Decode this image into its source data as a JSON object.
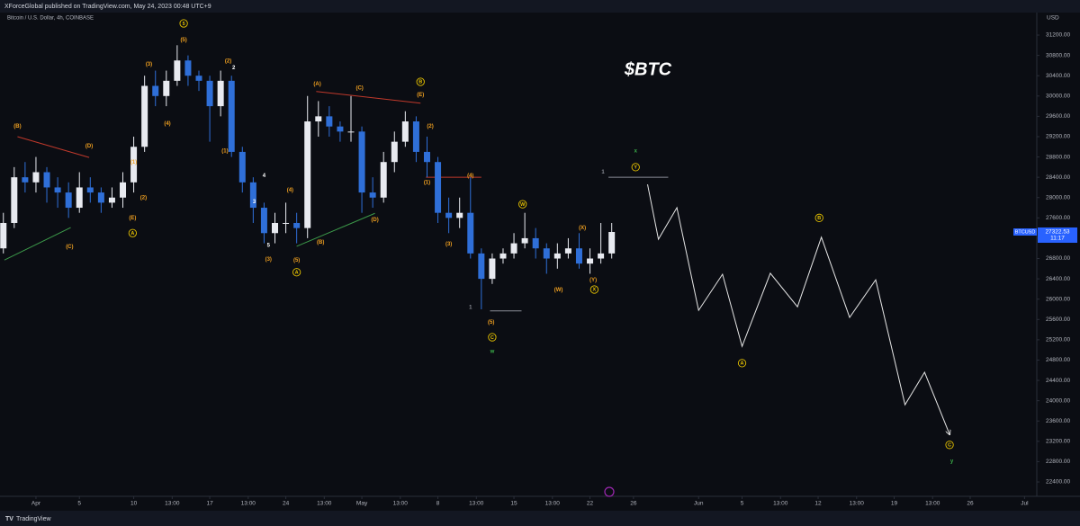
{
  "header": "XForceGlobal published on TradingView.com, May 24, 2023 00:48 UTC+9",
  "footer": "TradingView",
  "chart_data": {
    "type": "candlestick",
    "title": "$BTC",
    "symbol": "Bitcoin / U.S. Dollar, 4h, COINBASE",
    "currency": "BTCUSD",
    "y_unit": "USD",
    "countdown": "11:17",
    "up_color": "#e8eaf0",
    "down_color": "#2f6fd8",
    "grid": false,
    "x": [
      -3,
      -2,
      -1,
      0,
      1,
      2,
      3,
      4,
      5,
      6,
      7,
      8,
      9,
      10,
      11,
      12,
      13,
      14,
      15,
      16,
      17,
      18,
      19,
      20,
      21,
      22,
      23,
      24,
      25,
      26,
      27,
      28,
      29,
      30,
      31,
      32,
      33,
      34,
      35,
      36,
      37,
      38,
      39,
      40,
      41,
      42,
      43,
      44,
      45,
      46,
      47,
      48,
      49,
      50,
      51,
      52,
      53
    ],
    "open": [
      27000,
      27500,
      28400,
      28300,
      28500,
      28200,
      28100,
      27800,
      28200,
      28100,
      27900,
      28000,
      28300,
      29000,
      30200,
      30000,
      30300,
      30700,
      30400,
      30300,
      29800,
      30300,
      28900,
      28300,
      27800,
      27300,
      27500,
      27500,
      27400,
      29500,
      29600,
      29400,
      29300,
      29300,
      28100,
      28000,
      28700,
      29100,
      29500,
      28900,
      28700,
      27700,
      27600,
      27700,
      26900,
      26400,
      26800,
      26900,
      27100,
      27200,
      27000,
      26800,
      26900,
      27000,
      26700,
      26800,
      26900
    ],
    "high": [
      27700,
      28600,
      28700,
      28800,
      28600,
      28400,
      28300,
      28500,
      28400,
      28200,
      28200,
      28500,
      29200,
      30400,
      30500,
      30500,
      31000,
      30800,
      30500,
      30400,
      30500,
      30400,
      29000,
      28400,
      27900,
      27700,
      27900,
      27700,
      30000,
      29900,
      29800,
      29500,
      30000,
      29400,
      28400,
      28900,
      29300,
      29700,
      29600,
      29200,
      28800,
      28000,
      28000,
      28400,
      27000,
      26900,
      27000,
      27300,
      27700,
      27400,
      27100,
      27100,
      27200,
      27300,
      27000,
      27500,
      27500
    ],
    "low": [
      26900,
      27400,
      28100,
      28100,
      27900,
      27800,
      27600,
      27700,
      27900,
      27700,
      27800,
      27800,
      28100,
      28900,
      29800,
      29800,
      30200,
      30200,
      30100,
      29100,
      29600,
      28800,
      28100,
      27500,
      27100,
      27100,
      27300,
      27100,
      27200,
      29200,
      29200,
      29100,
      29100,
      27700,
      27800,
      27900,
      28500,
      29000,
      28700,
      28400,
      27500,
      27300,
      27400,
      26800,
      25800,
      26300,
      26700,
      26800,
      27000,
      26800,
      26500,
      26600,
      26800,
      26600,
      26500,
      26700,
      26800
    ],
    "close": [
      27500,
      28400,
      28300,
      28500,
      28200,
      28100,
      27800,
      28200,
      28100,
      27900,
      28000,
      28300,
      29000,
      30200,
      30000,
      30300,
      30700,
      30400,
      30300,
      29800,
      30300,
      28900,
      28300,
      27800,
      27300,
      27500,
      27500,
      27400,
      29500,
      29600,
      29400,
      29300,
      29300,
      28100,
      28000,
      28700,
      29100,
      29500,
      28900,
      28700,
      27700,
      27600,
      27700,
      26900,
      26400,
      26800,
      26900,
      27100,
      27200,
      27000,
      26800,
      26900,
      27000,
      26700,
      26800,
      26900,
      27322.53
    ],
    "projection": {
      "color": "#e6e6e6",
      "x": [
        56.3,
        57.3,
        59.0,
        61.0,
        63.2,
        65.0,
        67.6,
        70.1,
        72.3,
        74.9,
        77.3,
        80.0,
        81.8,
        84.1
      ],
      "values": [
        28260,
        27180,
        27800,
        25780,
        26490,
        25070,
        26510,
        25850,
        27220,
        25640,
        26380,
        23920,
        24560,
        23340
      ]
    },
    "lines": [
      {
        "color": "#c0392b",
        "x": [
          -1.7,
          4.9
        ],
        "values": [
          29200,
          28790
        ]
      },
      {
        "color": "#c0392b",
        "x": [
          25.8,
          35.4
        ],
        "values": [
          30090,
          29860
        ]
      },
      {
        "color": "#c0392b",
        "x": [
          35.9,
          41.0
        ],
        "values": [
          28400,
          28400
        ]
      },
      {
        "color": "#3c9a4a",
        "x": [
          -2.9,
          3.2
        ],
        "values": [
          26770,
          27410
        ]
      },
      {
        "color": "#3c9a4a",
        "x": [
          24.0,
          31.2
        ],
        "values": [
          27040,
          27690
        ]
      },
      {
        "color": "#8a8d96",
        "x": [
          41.8,
          44.7
        ],
        "values": [
          25770,
          25770
        ]
      },
      {
        "color": "#8a8d96",
        "x": [
          52.7,
          58.2
        ],
        "values": [
          28400,
          28400
        ]
      }
    ],
    "annotations": [
      {
        "text": "(B)",
        "x": -1.7,
        "y": 29410,
        "color": "#f0a020"
      },
      {
        "text": "(D)",
        "x": 4.9,
        "y": 29020,
        "color": "#f0a020"
      },
      {
        "text": "(C)",
        "x": 3.1,
        "y": 27040,
        "color": "#f0a020"
      },
      {
        "text": "(E)",
        "x": 8.9,
        "y": 27600,
        "color": "#f0a020"
      },
      {
        "text": "A",
        "x": 8.9,
        "y": 27300,
        "color": "#e6c200",
        "circled": true
      },
      {
        "text": "(1)",
        "x": 9.0,
        "y": 28700,
        "color": "#f0a020"
      },
      {
        "text": "(2)",
        "x": 9.9,
        "y": 28000,
        "color": "#f0a020"
      },
      {
        "text": "(3)",
        "x": 10.4,
        "y": 30630,
        "color": "#f0a020"
      },
      {
        "text": "(4)",
        "x": 12.1,
        "y": 29460,
        "color": "#f0a020"
      },
      {
        "text": "(5)",
        "x": 13.6,
        "y": 31110,
        "color": "#f0a020"
      },
      {
        "text": "5",
        "x": 13.6,
        "y": 31430,
        "color": "#e6c200",
        "circled": true
      },
      {
        "text": "(1)",
        "x": 17.4,
        "y": 28920,
        "color": "#f0a020"
      },
      {
        "text": "(2)",
        "x": 17.7,
        "y": 30690,
        "color": "#f0a020"
      },
      {
        "text": "2",
        "x": 18.2,
        "y": 30560,
        "color": "#ffffff"
      },
      {
        "text": "3",
        "x": 20.1,
        "y": 27920,
        "color": "#ffffff"
      },
      {
        "text": "4",
        "x": 21.0,
        "y": 28440,
        "color": "#ffffff"
      },
      {
        "text": "5",
        "x": 21.4,
        "y": 27060,
        "color": "#ffffff"
      },
      {
        "text": "(3)",
        "x": 21.4,
        "y": 26790,
        "color": "#f0a020"
      },
      {
        "text": "(4)",
        "x": 23.4,
        "y": 28150,
        "color": "#f0a020"
      },
      {
        "text": "(5)",
        "x": 24.0,
        "y": 26770,
        "color": "#f0a020"
      },
      {
        "text": "A",
        "x": 24.0,
        "y": 26530,
        "color": "#e6c200",
        "circled": true
      },
      {
        "text": "(A)",
        "x": 25.9,
        "y": 30240,
        "color": "#f0a020"
      },
      {
        "text": "(C)",
        "x": 29.8,
        "y": 30160,
        "color": "#f0a020"
      },
      {
        "text": "(B)",
        "x": 26.2,
        "y": 27130,
        "color": "#f0a020"
      },
      {
        "text": "(D)",
        "x": 31.2,
        "y": 27570,
        "color": "#f0a020"
      },
      {
        "text": "B",
        "x": 35.4,
        "y": 30280,
        "color": "#e6c200",
        "circled": true
      },
      {
        "text": "(E)",
        "x": 35.4,
        "y": 30030,
        "color": "#f0a020"
      },
      {
        "text": "(2)",
        "x": 36.3,
        "y": 29410,
        "color": "#f0a020"
      },
      {
        "text": "(1)",
        "x": 36.0,
        "y": 28300,
        "color": "#f0a020"
      },
      {
        "text": "(4)",
        "x": 40.0,
        "y": 28440,
        "color": "#f0a020"
      },
      {
        "text": "(3)",
        "x": 38.0,
        "y": 27090,
        "color": "#f0a020"
      },
      {
        "text": "W",
        "x": 44.8,
        "y": 27870,
        "color": "#e6c200",
        "circled": true
      },
      {
        "text": "(X)",
        "x": 50.3,
        "y": 27410,
        "color": "#f0a020"
      },
      {
        "text": "(W)",
        "x": 48.1,
        "y": 26190,
        "color": "#f0a020"
      },
      {
        "text": "(Y)",
        "x": 51.3,
        "y": 26380,
        "color": "#f0a020"
      },
      {
        "text": "X",
        "x": 51.4,
        "y": 26190,
        "color": "#e6c200",
        "circled": true
      },
      {
        "text": "(5)",
        "x": 41.9,
        "y": 25550,
        "color": "#f0a020"
      },
      {
        "text": "C",
        "x": 42.0,
        "y": 25250,
        "color": "#e6c200",
        "circled": true
      },
      {
        "text": "w",
        "x": 42.0,
        "y": 24970,
        "color": "#3cb04a"
      },
      {
        "text": "1",
        "x": 40.0,
        "y": 25840,
        "color": "#8a8d96"
      },
      {
        "text": "1",
        "x": 52.2,
        "y": 28510,
        "color": "#8a8d96"
      },
      {
        "text": "x",
        "x": 55.2,
        "y": 28920,
        "color": "#3cb04a"
      },
      {
        "text": "Y",
        "x": 55.2,
        "y": 28600,
        "color": "#e6c200",
        "circled": true
      },
      {
        "text": "B",
        "x": 72.1,
        "y": 27600,
        "color": "#e6c200",
        "circled": true
      },
      {
        "text": "A",
        "x": 65.0,
        "y": 24740,
        "color": "#e6c200",
        "circled": true
      },
      {
        "text": "C",
        "x": 84.1,
        "y": 23130,
        "color": "#e6c200",
        "circled": true
      },
      {
        "text": "y",
        "x": 84.3,
        "y": 22810,
        "color": "#3cb04a"
      }
    ],
    "xlim": [
      -3.31,
      92.13
    ],
    "xticks": [
      {
        "value": 0,
        "label": "Apr"
      },
      {
        "value": 4,
        "label": "5"
      },
      {
        "value": 9,
        "label": "10"
      },
      {
        "value": 12.54,
        "label": "13:00"
      },
      {
        "value": 16,
        "label": "17"
      },
      {
        "value": 19.54,
        "label": "13:00"
      },
      {
        "value": 23,
        "label": "24"
      },
      {
        "value": 26.54,
        "label": "13:00"
      },
      {
        "value": 30,
        "label": "May"
      },
      {
        "value": 33.54,
        "label": "13:00"
      },
      {
        "value": 37,
        "label": "8"
      },
      {
        "value": 40.54,
        "label": "13:00"
      },
      {
        "value": 44,
        "label": "15"
      },
      {
        "value": 47.54,
        "label": "13:00"
      },
      {
        "value": 51,
        "label": "22"
      },
      {
        "value": 55,
        "label": "26"
      },
      {
        "value": 61,
        "label": "Jun"
      },
      {
        "value": 65,
        "label": "5"
      },
      {
        "value": 68.54,
        "label": "13:00"
      },
      {
        "value": 72,
        "label": "12"
      },
      {
        "value": 75.54,
        "label": "13:00"
      },
      {
        "value": 79,
        "label": "19"
      },
      {
        "value": 82.54,
        "label": "13:00"
      },
      {
        "value": 86,
        "label": "26"
      },
      {
        "value": 91,
        "label": "Jul"
      }
    ],
    "ylim": [
      22117,
      31643
    ],
    "yticks": [
      {
        "value": 22400,
        "label": "22400.00"
      },
      {
        "value": 22800,
        "label": "22800.00"
      },
      {
        "value": 23200,
        "label": "23200.00"
      },
      {
        "value": 23600,
        "label": "23600.00"
      },
      {
        "value": 24000,
        "label": "24000.00"
      },
      {
        "value": 24400,
        "label": "24400.00"
      },
      {
        "value": 24800,
        "label": "24800.00"
      },
      {
        "value": 25200,
        "label": "25200.00"
      },
      {
        "value": 25600,
        "label": "25600.00"
      },
      {
        "value": 26000,
        "label": "26000.00"
      },
      {
        "value": 26400,
        "label": "26400.00"
      },
      {
        "value": 26800,
        "label": "26800.00"
      },
      {
        "value": 27200,
        "label": "27200.00"
      },
      {
        "value": 27600,
        "label": "27600.00"
      },
      {
        "value": 28000,
        "label": "28000.00"
      },
      {
        "value": 28400,
        "label": "28400.00"
      },
      {
        "value": 28800,
        "label": "28800.00"
      },
      {
        "value": 29200,
        "label": "29200.00"
      },
      {
        "value": 29600,
        "label": "29600.00"
      },
      {
        "value": 30000,
        "label": "30000.00"
      },
      {
        "value": 30400,
        "label": "30400.00"
      },
      {
        "value": 30800,
        "label": "30800.00"
      },
      {
        "value": 31200,
        "label": "31200.00"
      }
    ]
  }
}
